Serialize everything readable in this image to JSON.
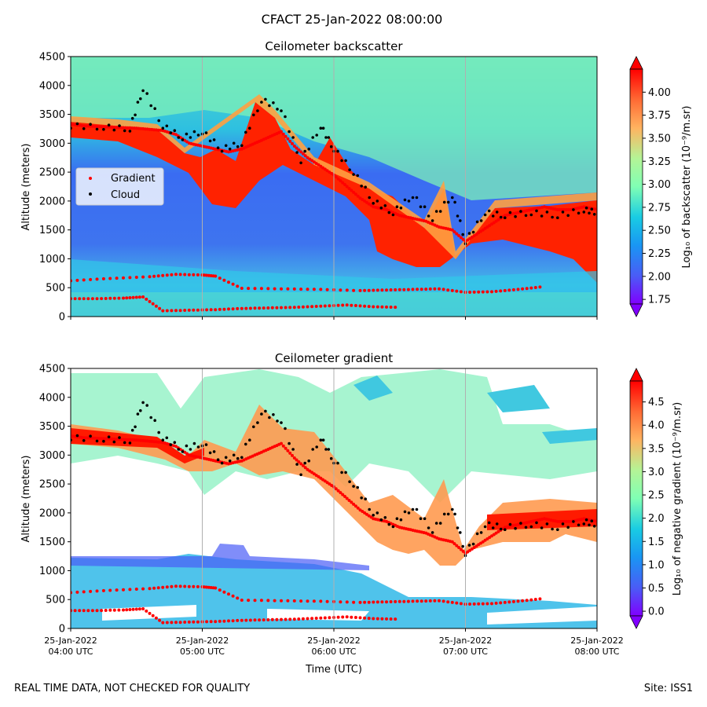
{
  "figure_title": "CFACT 25-Jan-2022 08:00:00",
  "footer": {
    "disclaimer": "REAL TIME DATA, NOT CHECKED FOR QUALITY",
    "site": "Site: ISS1"
  },
  "chart_data": [
    {
      "type": "heatmap",
      "title": "Ceilometer backscatter",
      "ylabel": "Altitude (meters)",
      "ylim": [
        0,
        4500
      ],
      "y_ticks": [
        "0",
        "500",
        "1000",
        "1500",
        "2000",
        "2500",
        "3000",
        "3500",
        "4000",
        "4500"
      ],
      "x_tick_labels": [],
      "grid": "vertical lines at hourly ticks",
      "legend": {
        "placement": "center-left",
        "entries": [
          {
            "name": "Gradient",
            "color": "#ff0000",
            "marker": "dot"
          },
          {
            "name": "Cloud",
            "color": "#000000",
            "marker": "dot"
          }
        ]
      },
      "colorbar": {
        "label": "Log₁₀ of backscatter (10⁻⁹/m.sr)",
        "range": [
          1.7,
          4.25
        ],
        "ticks": [
          "1.75",
          "2.00",
          "2.25",
          "2.50",
          "2.75",
          "3.00",
          "3.25",
          "3.50",
          "3.75",
          "4.00"
        ],
        "extend": "both",
        "colormap": "rainbow"
      }
    },
    {
      "type": "heatmap",
      "title": "Ceilometer gradient",
      "ylabel": "Altitude (meters)",
      "xlabel": "Time (UTC)",
      "ylim": [
        0,
        4500
      ],
      "y_ticks": [
        "0",
        "500",
        "1000",
        "1500",
        "2000",
        "2500",
        "3000",
        "3500",
        "4000",
        "4500"
      ],
      "x_tick_labels": [
        [
          "25-Jan-2022",
          "04:00 UTC"
        ],
        [
          "25-Jan-2022",
          "05:00 UTC"
        ],
        [
          "25-Jan-2022",
          "06:00 UTC"
        ],
        [
          "25-Jan-2022",
          "07:00 UTC"
        ],
        [
          "25-Jan-2022",
          "08:00 UTC"
        ]
      ],
      "grid": "vertical lines at hourly ticks",
      "colorbar": {
        "label": "Log₁₀ of negative gradient (10⁻⁹/m.sr)",
        "range": [
          -0.1,
          4.95
        ],
        "ticks": [
          "0.0",
          "0.5",
          "1.0",
          "1.5",
          "2.0",
          "2.5",
          "3.0",
          "3.5",
          "4.0",
          "4.5"
        ],
        "extend": "both",
        "colormap": "rainbow"
      }
    }
  ],
  "series": {
    "cloud_top_layer": {
      "name": "Cloud",
      "color": "#000000",
      "x_hours": [
        4.0,
        4.25,
        4.45,
        4.55,
        4.7,
        4.85,
        5.0,
        5.15,
        5.3,
        5.45,
        5.6,
        5.75,
        5.9,
        6.0,
        6.15,
        6.3,
        6.45,
        6.6,
        6.75,
        6.9,
        7.0,
        7.15,
        7.3,
        7.5,
        7.7,
        7.9,
        8.0
      ],
      "altitude_m": [
        3300,
        3280,
        3250,
        3950,
        3300,
        3100,
        3200,
        2900,
        3000,
        3750,
        3600,
        2700,
        3300,
        2900,
        2500,
        2000,
        1800,
        2100,
        1700,
        2100,
        1300,
        1800,
        1750,
        1800,
        1750,
        1850,
        1800
      ]
    },
    "gradient_upper": {
      "name": "Gradient",
      "color": "#ff0000",
      "x_hours": [
        4.0,
        4.1,
        4.2,
        4.3,
        4.4,
        4.5,
        4.6,
        4.7,
        4.8,
        4.9,
        5.0,
        5.1,
        5.2,
        5.3,
        5.4,
        5.5,
        5.6,
        5.7,
        5.8,
        5.9,
        6.0,
        6.1,
        6.2,
        6.3,
        6.4,
        6.5,
        6.6,
        6.7,
        6.8,
        6.9,
        7.0,
        7.1,
        7.2,
        7.3,
        7.4,
        7.5,
        7.6,
        7.7,
        7.8,
        7.9,
        8.0
      ],
      "altitude_m": [
        3330,
        3300,
        3290,
        3280,
        3270,
        3260,
        3240,
        3220,
        3150,
        3000,
        2950,
        2900,
        2850,
        2900,
        3000,
        3100,
        3200,
        2950,
        2750,
        2600,
        2450,
        2250,
        2050,
        1900,
        1850,
        1750,
        1700,
        1650,
        1550,
        1500,
        1300,
        1450,
        1600,
        1750,
        1800,
        1850,
        1900,
        1850,
        1850,
        1900,
        1850
      ]
    },
    "gradient_mid": {
      "name": "Gradient",
      "color": "#ff0000",
      "x_hours": [
        4.0,
        4.3,
        4.6,
        4.8,
        5.0,
        5.1,
        5.3,
        5.6,
        5.9,
        6.2,
        6.4,
        6.6,
        6.8,
        7.0,
        7.2,
        7.4,
        7.6
      ],
      "altitude_m": [
        620,
        660,
        690,
        730,
        720,
        700,
        490,
        480,
        470,
        450,
        460,
        470,
        480,
        420,
        430,
        470,
        520
      ]
    },
    "gradient_low": {
      "name": "Gradient",
      "color": "#ff0000",
      "x_hours": [
        4.0,
        4.2,
        4.4,
        4.55,
        4.7,
        4.9,
        5.1,
        5.3,
        5.5,
        5.7,
        5.9,
        6.1,
        6.3,
        6.5
      ],
      "altitude_m": [
        310,
        310,
        320,
        340,
        100,
        110,
        120,
        140,
        150,
        160,
        180,
        200,
        170,
        160
      ]
    }
  }
}
